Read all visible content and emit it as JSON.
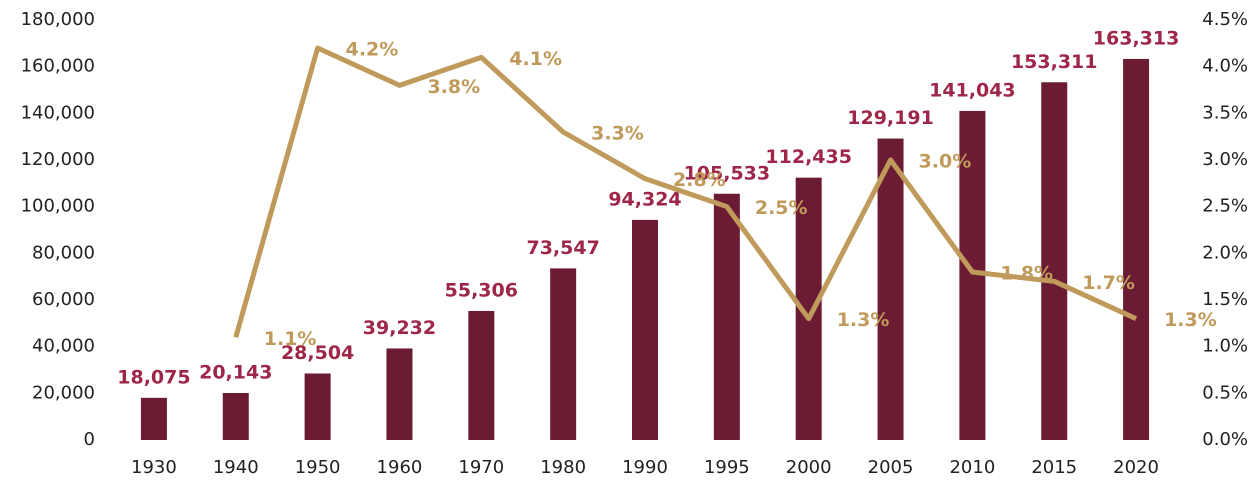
{
  "chart_data": {
    "type": "bar",
    "categories": [
      "1930",
      "1940",
      "1950",
      "1960",
      "1970",
      "1980",
      "1990",
      "1995",
      "2000",
      "2005",
      "2010",
      "2015",
      "2020"
    ],
    "series": [
      {
        "type": "bar",
        "color": "#6b1c33",
        "label_color": "#9e2648",
        "values": [
          18075,
          20143,
          28504,
          39232,
          55306,
          73547,
          94324,
          105533,
          112435,
          129191,
          141043,
          153311,
          163313
        ],
        "value_labels": [
          "18,075",
          "20,143",
          "28,504",
          "39,232",
          "55,306",
          "73,547",
          "94,324",
          "105,533",
          "112,435",
          "129,191",
          "141,043",
          "153,311",
          "163,313"
        ]
      },
      {
        "type": "line",
        "axis": "y2",
        "color": "#c09a5b",
        "label_color": "#c09a5b",
        "values": [
          null,
          1.1,
          4.2,
          3.8,
          4.1,
          3.3,
          2.8,
          2.5,
          1.3,
          3.0,
          1.8,
          1.7,
          1.3
        ],
        "value_labels": [
          null,
          "1.1%",
          "4.2%",
          "3.8%",
          "4.1%",
          "3.3%",
          "2.8%",
          "2.5%",
          "1.3%",
          "3.0%",
          "1.8%",
          "1.7%",
          "1.3%"
        ]
      }
    ],
    "ylim": [
      0,
      180000
    ],
    "yticks": [
      0,
      {
        "value": 20000,
        "label": "20,000"
      },
      {
        "value": 40000,
        "label": "40,000"
      },
      {
        "value": 60000,
        "label": "60,000"
      },
      {
        "value": 80000,
        "label": "80,000"
      },
      {
        "value": 100000,
        "label": "100,000"
      },
      {
        "value": 120000,
        "label": "120,000"
      },
      {
        "value": 140000,
        "label": "140,000"
      },
      {
        "value": 160000,
        "label": "160,000"
      },
      {
        "value": 180000,
        "label": "180,000"
      }
    ],
    "y2lim": [
      0,
      4.5
    ],
    "y2ticks": [
      {
        "value": 0,
        "label": "0.0%"
      },
      {
        "value": 0.5,
        "label": "0.5%"
      },
      {
        "value": 1,
        "label": "1.0%"
      },
      {
        "value": 1.5,
        "label": "1.5%"
      },
      {
        "value": 2,
        "label": "2.0%"
      },
      {
        "value": 2.5,
        "label": "2.5%"
      },
      {
        "value": 3,
        "label": "3.0%"
      },
      {
        "value": 3.5,
        "label": "3.5%"
      },
      {
        "value": 4,
        "label": "4.0%"
      },
      {
        "value": 4.5,
        "label": "4.5%"
      }
    ]
  }
}
